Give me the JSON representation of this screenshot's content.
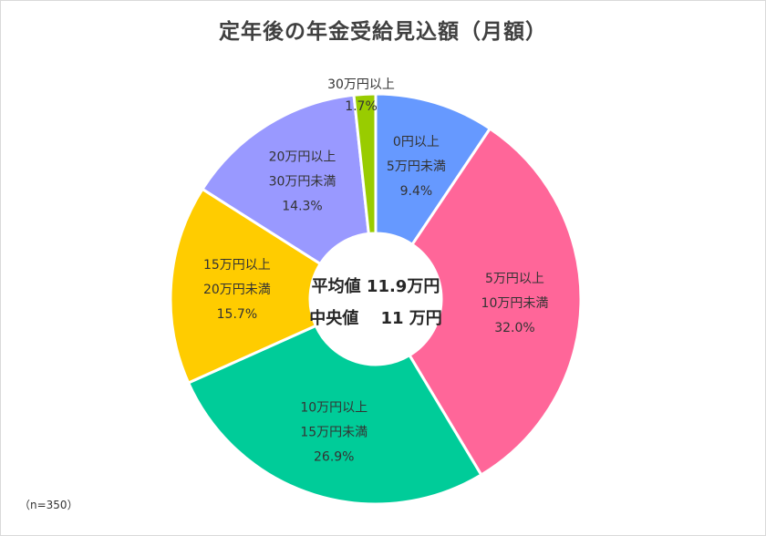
{
  "chart_data": {
    "type": "pie",
    "title": "定年後の年金受給見込額（月額）",
    "categories": [
      "0円以上\n5万円未満",
      "5万円以上\n10万円未満",
      "10万円以上\n15万円未満",
      "15万円以上\n20万円未満",
      "20万円以上\n30万円未満",
      "30万円以上"
    ],
    "values": [
      9.4,
      32.0,
      26.9,
      15.7,
      14.3,
      1.7
    ],
    "value_labels": [
      "9.4%",
      "32.0%",
      "26.9%",
      "15.7%",
      "14.3%",
      "1.7%"
    ],
    "colors": [
      "#6699ff",
      "#ff6699",
      "#00cc99",
      "#ffcc00",
      "#9999ff",
      "#99cc00"
    ],
    "donut": true,
    "center_text": [
      "平均値 11.9万円",
      "中央値　 11 万円"
    ],
    "note": "（n=350）"
  }
}
